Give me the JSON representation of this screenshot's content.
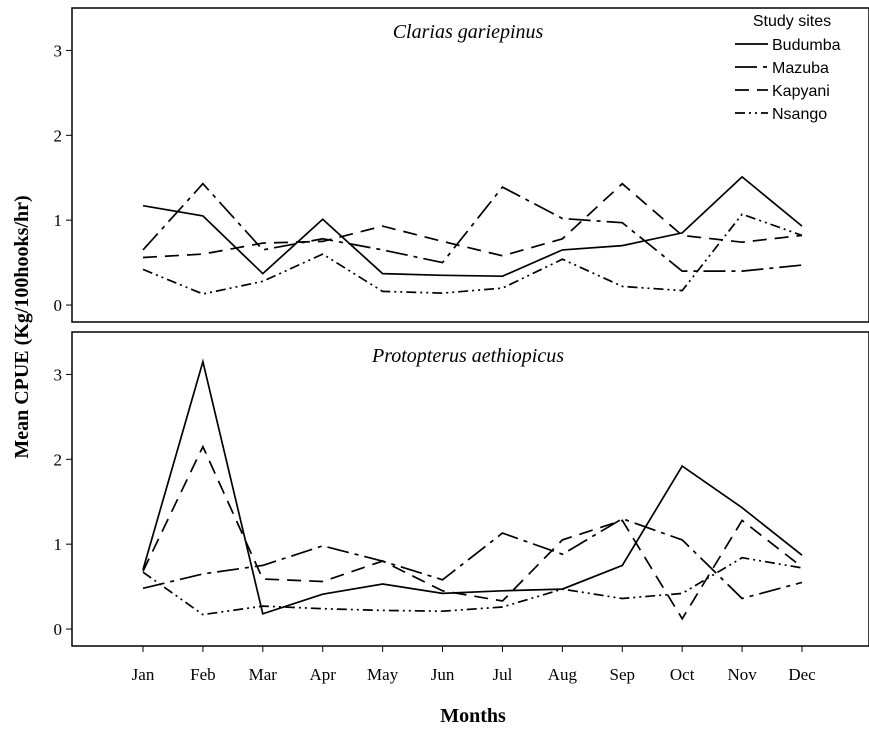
{
  "chart_data": {
    "type": "line",
    "xlabel": "Months",
    "ylabel": "Mean CPUE (Kg/100hooks/hr)",
    "categories": [
      "Jan",
      "Feb",
      "Mar",
      "Apr",
      "May",
      "Jun",
      "Jul",
      "Aug",
      "Sep",
      "Oct",
      "Nov",
      "Dec"
    ],
    "ylim": [
      -0.2,
      3.5
    ],
    "yticks": [
      "0",
      "1",
      "2",
      "3"
    ],
    "legend": {
      "title": "Study sites",
      "position": "top-right",
      "entries": [
        "Budumba",
        "Mazuba",
        "Kapyani",
        "Nsango"
      ]
    },
    "panels": [
      {
        "title": "Clarias gariepinus",
        "series": [
          {
            "name": "Budumba",
            "values": [
              1.17,
              1.05,
              0.37,
              1.01,
              0.37,
              0.35,
              0.34,
              0.65,
              0.7,
              0.85,
              1.51,
              0.93
            ]
          },
          {
            "name": "Mazuba",
            "values": [
              0.65,
              1.43,
              0.65,
              0.78,
              0.65,
              0.5,
              1.39,
              1.02,
              0.97,
              0.4,
              0.4,
              0.47
            ]
          },
          {
            "name": "Kapyani",
            "values": [
              0.56,
              0.6,
              0.73,
              0.75,
              0.93,
              0.75,
              0.58,
              0.78,
              1.43,
              0.82,
              0.74,
              0.82
            ]
          },
          {
            "name": "Nsango",
            "values": [
              0.42,
              0.13,
              0.28,
              0.6,
              0.16,
              0.14,
              0.2,
              0.54,
              0.22,
              0.17,
              1.07,
              0.82
            ]
          }
        ]
      },
      {
        "title": "Protopterus aethiopicus",
        "series": [
          {
            "name": "Budumba",
            "values": [
              0.7,
              3.15,
              0.18,
              0.41,
              0.53,
              0.42,
              0.45,
              0.47,
              0.75,
              1.92,
              1.43,
              0.87
            ]
          },
          {
            "name": "Mazuba",
            "values": [
              0.48,
              0.65,
              0.75,
              0.98,
              0.8,
              0.58,
              1.13,
              0.88,
              1.3,
              1.05,
              0.36,
              0.55
            ]
          },
          {
            "name": "Kapyani",
            "values": [
              0.68,
              2.15,
              0.59,
              0.56,
              0.8,
              0.45,
              0.33,
              1.05,
              1.28,
              0.12,
              1.28,
              0.73
            ]
          },
          {
            "name": "Nsango",
            "values": [
              0.67,
              0.17,
              0.27,
              0.24,
              0.22,
              0.21,
              0.26,
              0.47,
              0.36,
              0.42,
              0.84,
              0.72
            ]
          }
        ]
      }
    ]
  }
}
